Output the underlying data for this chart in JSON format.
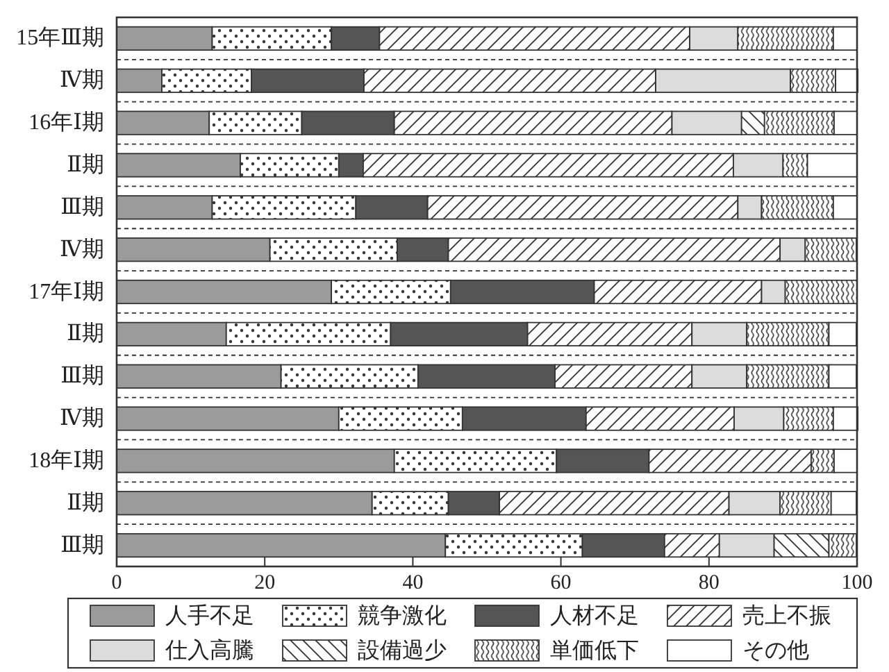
{
  "chart_data": {
    "type": "bar",
    "orientation": "horizontal",
    "stacked": true,
    "categories": [
      "15年Ⅲ期",
      "Ⅳ期",
      "16年Ⅰ期",
      "Ⅱ期",
      "Ⅲ期",
      "Ⅳ期",
      "17年Ⅰ期",
      "Ⅱ期",
      "Ⅲ期",
      "Ⅳ期",
      "18年Ⅰ期",
      "Ⅱ期",
      "Ⅲ期"
    ],
    "xlim": [
      0,
      100
    ],
    "xticks": [
      0,
      20,
      40,
      60,
      80,
      100
    ],
    "legend": "bottom",
    "series": [
      {
        "name": "人手不足",
        "color": "#9b9b9b",
        "values": [
          12.9,
          6.1,
          12.5,
          16.7,
          12.9,
          20.7,
          29.0,
          14.8,
          22.2,
          30.0,
          37.5,
          34.5,
          44.4
        ]
      },
      {
        "name": "競争激化",
        "color": "#333333",
        "values": [
          16.1,
          12.1,
          12.5,
          13.3,
          19.4,
          17.2,
          16.1,
          22.2,
          18.5,
          16.7,
          21.9,
          10.3,
          18.5
        ]
      },
      {
        "name": "人材不足",
        "color": "#555555",
        "values": [
          6.5,
          15.2,
          12.5,
          3.3,
          9.7,
          6.9,
          19.4,
          18.5,
          18.5,
          16.7,
          12.5,
          6.9,
          11.1
        ]
      },
      {
        "name": "売上不振",
        "color": "#333333",
        "values": [
          41.9,
          39.4,
          37.5,
          50.0,
          41.9,
          44.8,
          22.6,
          22.2,
          18.5,
          20.0,
          21.9,
          31.0,
          7.4
        ]
      },
      {
        "name": "仕入高騰",
        "color": "#dcdcdc",
        "values": [
          6.5,
          18.2,
          9.4,
          6.7,
          3.2,
          3.4,
          3.2,
          7.4,
          7.4,
          6.7,
          null,
          6.9,
          7.4
        ]
      },
      {
        "name": "設備過少",
        "color": "#333333",
        "values": [
          null,
          null,
          3.1,
          null,
          null,
          null,
          null,
          null,
          null,
          null,
          null,
          null,
          7.4
        ]
      },
      {
        "name": "単価低下",
        "color": "#333333",
        "values": [
          12.9,
          6.1,
          9.4,
          3.3,
          9.7,
          6.9,
          9.7,
          11.1,
          11.1,
          6.7,
          3.1,
          6.9,
          3.7
        ]
      },
      {
        "name": "その他",
        "color": "#ffffff",
        "values": [
          3.2,
          3.0,
          3.1,
          6.7,
          3.2,
          null,
          null,
          3.7,
          3.7,
          3.3,
          3.1,
          3.4,
          null
        ]
      }
    ]
  }
}
